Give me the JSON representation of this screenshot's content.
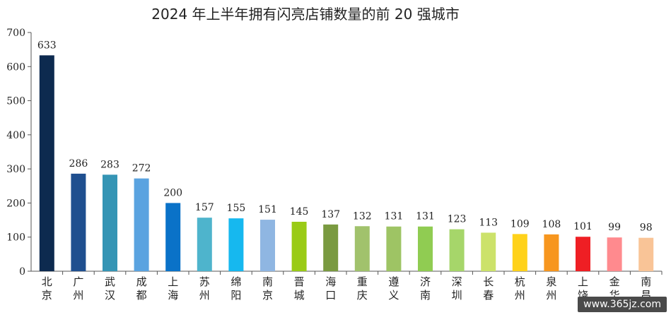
{
  "chart_data": {
    "type": "bar",
    "title": "2024 年上半年拥有闪亮店铺数量的前 20 强城市",
    "xlabel": "",
    "ylabel": "",
    "ylim": [
      0,
      700
    ],
    "yticks": [
      0,
      100,
      200,
      300,
      400,
      500,
      600,
      700
    ],
    "grid": false,
    "categories": [
      "北京",
      "广州",
      "武汉",
      "成都",
      "上海",
      "苏州",
      "绵阳",
      "南京",
      "晋城",
      "海口",
      "重庆",
      "遵义",
      "济南",
      "深圳",
      "长春",
      "杭州",
      "泉州",
      "上饶",
      "金华",
      "南昌"
    ],
    "values": [
      633,
      286,
      283,
      272,
      200,
      157,
      155,
      151,
      145,
      137,
      132,
      131,
      131,
      123,
      113,
      109,
      108,
      101,
      99,
      98
    ],
    "colors": [
      "#0d2a4f",
      "#1f4f8f",
      "#3595b5",
      "#5aa3e0",
      "#0a72c8",
      "#4eb4cc",
      "#16b8ef",
      "#8fb6e2",
      "#9acb16",
      "#7a9a40",
      "#a1c26c",
      "#9ec464",
      "#90cc52",
      "#a6d66a",
      "#cce26a",
      "#ffd21a",
      "#f7961e",
      "#ef1f24",
      "#ff8a8e",
      "#f9c497"
    ]
  },
  "watermark": "www.365jz.com"
}
